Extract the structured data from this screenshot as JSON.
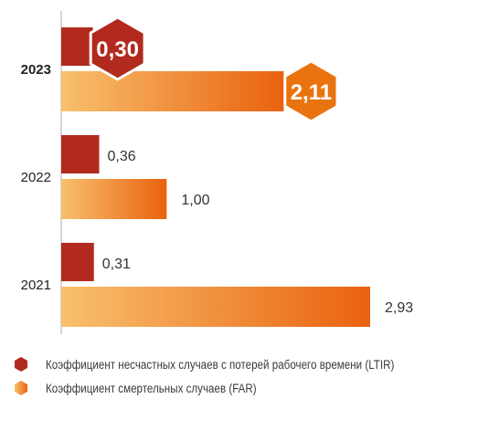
{
  "chart_data": {
    "type": "bar",
    "orientation": "horizontal",
    "categories": [
      "2023",
      "2022",
      "2021"
    ],
    "highlight_category": "2023",
    "series": [
      {
        "name": "Коэффициент несчастных случаев с потерей рабочего времени (LTIR)",
        "values": [
          0.3,
          0.36,
          0.31
        ],
        "labels": [
          "0,30",
          "0,36",
          "0,31"
        ],
        "color": "#b22a1e"
      },
      {
        "name": "Коэффициент смертельных случаев (FAR)",
        "values": [
          2.11,
          1.0,
          2.93
        ],
        "labels": [
          "2,11",
          "1,00",
          "2,93"
        ],
        "color_start": "#f8c06e",
        "color_end": "#e9620f"
      }
    ],
    "highlight_badge_colors": [
      "#b22a1e",
      "#e9740f"
    ],
    "xlim": [
      0,
      2.93
    ],
    "grid": false,
    "legend": "bottom",
    "title": "",
    "xlabel": "",
    "ylabel": ""
  }
}
